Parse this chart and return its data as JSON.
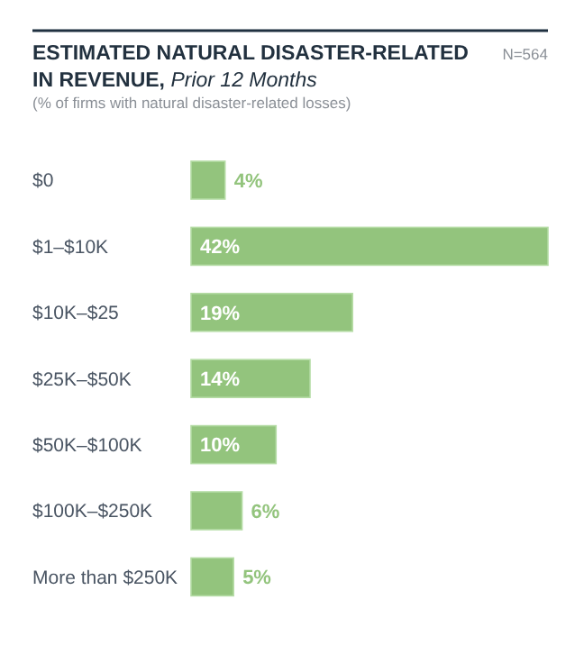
{
  "chart_data": {
    "type": "bar",
    "orientation": "horizontal",
    "title": "ESTIMATED NATURAL DISASTER-RELATED IN REVENUE,",
    "subtitle": "Prior 12 Months",
    "annotations": [
      "(% of firms with natural disaster-related losses)",
      "N=564"
    ],
    "categories": [
      "$0",
      "$1–$10K",
      "$10K–$25",
      "$25K–$50K",
      "$50K–$100K",
      "$100K–$250K",
      "More than $250K"
    ],
    "values": [
      4,
      42,
      19,
      14,
      10,
      6,
      5
    ],
    "value_labels": [
      "4%",
      "42%",
      "19%",
      "14%",
      "10%",
      "6%",
      "5%"
    ],
    "color": "#93c47d"
  }
}
